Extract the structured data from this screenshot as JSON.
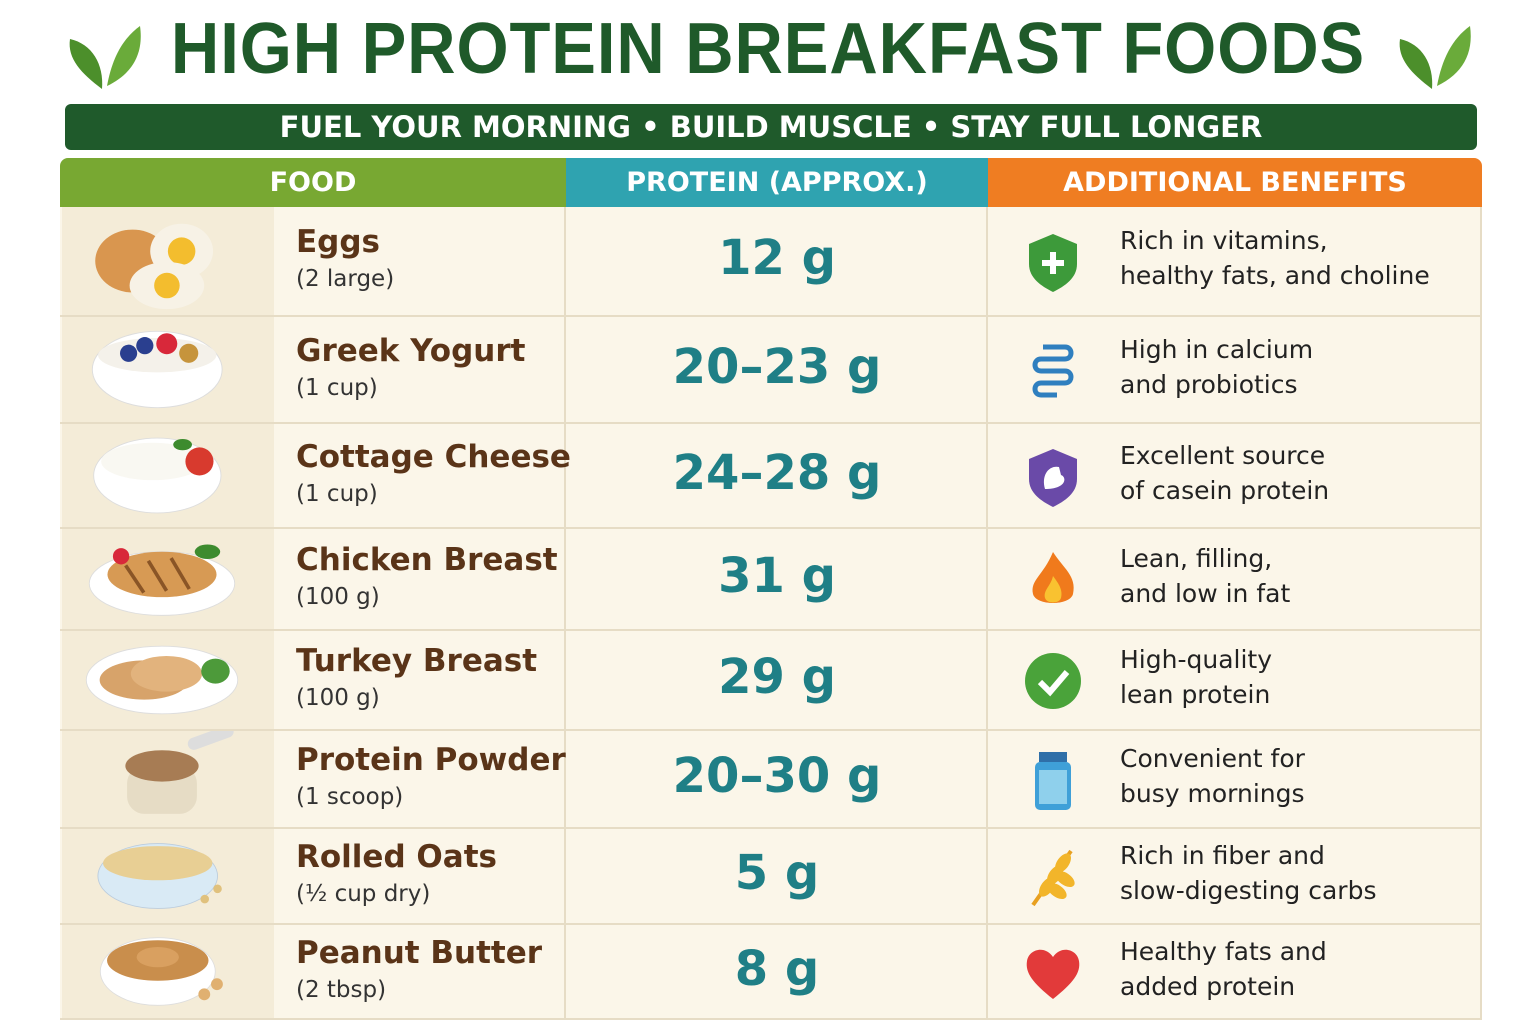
{
  "header": {
    "title": "HIGH PROTEIN BREAKFAST FOODS",
    "subtitle": "FUEL YOUR MORNING • BUILD MUSCLE • STAY FULL LONGER"
  },
  "table": {
    "columns": [
      "FOOD",
      "PROTEIN (APPROX.)",
      "ADDITIONAL BENEFITS"
    ],
    "rows": [
      {
        "food": "Eggs",
        "serving": "(2 large)",
        "protein": "12 g",
        "benefit": [
          "Rich in vitamins,",
          "healthy fats, and choline"
        ]
      },
      {
        "food": "Greek Yogurt",
        "serving": "(1 cup)",
        "protein": "20–23 g",
        "benefit": [
          "High in calcium",
          "and probiotics"
        ]
      },
      {
        "food": "Cottage Cheese",
        "serving": "(1 cup)",
        "protein": "24–28 g",
        "benefit": [
          "Excellent source",
          "of casein protein"
        ]
      },
      {
        "food": "Chicken Breast",
        "serving": "(100 g)",
        "protein": "31 g",
        "benefit": [
          "Lean, filling,",
          "and low in fat"
        ]
      },
      {
        "food": "Turkey Breast",
        "serving": "(100 g)",
        "protein": "29 g",
        "benefit": [
          "High-quality",
          "lean protein"
        ]
      },
      {
        "food": "Protein Powder",
        "serving": "(1 scoop)",
        "protein": "20–30 g",
        "benefit": [
          "Convenient for",
          "busy mornings"
        ]
      },
      {
        "food": "Rolled Oats",
        "serving": "(½ cup dry)",
        "protein": "5 g",
        "benefit": [
          "Rich in fiber and",
          "slow-digesting carbs"
        ]
      },
      {
        "food": "Peanut Butter",
        "serving": "(2 tbsp)",
        "protein": "8 g",
        "benefit": [
          "Healthy fats and",
          "added protein"
        ]
      }
    ]
  }
}
